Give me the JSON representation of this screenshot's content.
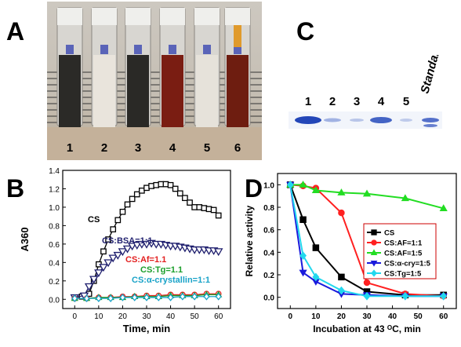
{
  "panels": {
    "a": "A",
    "b": "B",
    "c": "C",
    "d": "D"
  },
  "photo": {
    "tube_labels": [
      "1",
      "2",
      "3",
      "4",
      "5",
      "6"
    ]
  },
  "gel": {
    "lane_labels": [
      "1",
      "2",
      "3",
      "4",
      "5"
    ],
    "standards_label": "Standards"
  },
  "colors": {
    "cs_black": "#000000",
    "bsa_navy": "#1f1f6e",
    "af_red": "#e32020",
    "tg_green": "#1a9e2a",
    "acry_cyan": "#1aa3c8",
    "dCS": "#000000",
    "dAF11": "#ff2020",
    "dAF15": "#22dd22",
    "dAcry": "#1a1adc",
    "dTg": "#22d8ee"
  },
  "chart_data": [
    {
      "type": "line",
      "xlabel": "Time, min",
      "ylabel": "A360",
      "xlim": [
        -5,
        65
      ],
      "ylim": [
        -0.1,
        1.4
      ],
      "xticks": [
        0,
        10,
        20,
        30,
        40,
        50,
        60
      ],
      "yticks": [
        "0.0",
        "0.2",
        "0.4",
        "0.6",
        "0.8",
        "1.0",
        "1.2",
        "1.4"
      ],
      "series": [
        {
          "name": "CS",
          "label": "CS",
          "color": "#000000",
          "marker": "square",
          "x": [
            0,
            3,
            6,
            8,
            10,
            12,
            14,
            16,
            18,
            20,
            22,
            24,
            26,
            28,
            30,
            32,
            34,
            36,
            38,
            40,
            42,
            44,
            46,
            48,
            50,
            52,
            54,
            56,
            58,
            60
          ],
          "y": [
            0.02,
            0.03,
            0.06,
            0.2,
            0.38,
            0.52,
            0.65,
            0.76,
            0.86,
            0.95,
            1.03,
            1.09,
            1.14,
            1.18,
            1.21,
            1.23,
            1.24,
            1.25,
            1.25,
            1.24,
            1.2,
            1.15,
            1.1,
            1.05,
            1.0,
            1.0,
            0.99,
            0.98,
            0.97,
            0.91
          ]
        },
        {
          "name": "CS:BSA=1:1",
          "label": "CS:BSA=1:1",
          "color": "#1f1f6e",
          "marker": "triangle-down",
          "x": [
            0,
            4,
            6,
            8,
            10,
            12,
            14,
            16,
            18,
            20,
            22,
            24,
            26,
            28,
            30,
            32,
            34,
            36,
            38,
            40,
            42,
            44,
            46,
            48,
            50,
            52,
            54,
            56,
            58,
            60
          ],
          "y": [
            0.02,
            0.04,
            0.14,
            0.22,
            0.29,
            0.35,
            0.4,
            0.45,
            0.48,
            0.52,
            0.55,
            0.58,
            0.59,
            0.6,
            0.6,
            0.61,
            0.6,
            0.6,
            0.59,
            0.58,
            0.58,
            0.57,
            0.56,
            0.55,
            0.54,
            0.54,
            0.54,
            0.53,
            0.53,
            0.52
          ]
        },
        {
          "name": "CS:Af=1.1",
          "label": "CS:Af=1.1",
          "color": "#e32020",
          "marker": "circle",
          "x": [
            0,
            5,
            10,
            15,
            20,
            25,
            30,
            35,
            40,
            45,
            50,
            55,
            60
          ],
          "y": [
            0.01,
            0.01,
            0.02,
            0.02,
            0.03,
            0.03,
            0.04,
            0.04,
            0.05,
            0.05,
            0.05,
            0.06,
            0.06
          ]
        },
        {
          "name": "CS:Tg=1.1",
          "label": "CS:Tg=1.1",
          "color": "#1a9e2a",
          "marker": "triangle-up",
          "x": [
            0,
            5,
            10,
            15,
            20,
            25,
            30,
            35,
            40,
            45,
            50,
            55,
            60
          ],
          "y": [
            0.01,
            0.01,
            0.02,
            0.02,
            0.02,
            0.03,
            0.03,
            0.03,
            0.04,
            0.04,
            0.04,
            0.05,
            0.05
          ]
        },
        {
          "name": "CS:α-crystallin=1:1",
          "label": "CS:α-crystallin=1:1",
          "color": "#1aa3c8",
          "marker": "diamond",
          "x": [
            0,
            5,
            10,
            15,
            20,
            25,
            30,
            35,
            40,
            45,
            50,
            55,
            60
          ],
          "y": [
            0.01,
            0.01,
            0.01,
            0.01,
            0.02,
            0.02,
            0.02,
            0.02,
            0.02,
            0.03,
            0.03,
            0.03,
            0.03
          ]
        }
      ]
    },
    {
      "type": "line",
      "xlabel": "Incubation at 43 ᴼC, min",
      "ylabel": "Relative activity",
      "xlim": [
        -5,
        65
      ],
      "ylim": [
        -0.1,
        1.1
      ],
      "xticks": [
        0,
        10,
        20,
        30,
        40,
        50,
        60
      ],
      "yticks": [
        "0.0",
        "0.2",
        "0.4",
        "0.6",
        "0.8",
        "1.0"
      ],
      "legend_position": "center-right",
      "series": [
        {
          "name": "CS",
          "color": "#000000",
          "marker": "square",
          "x": [
            0,
            5,
            10,
            20,
            30,
            45,
            60
          ],
          "y": [
            1.0,
            0.69,
            0.44,
            0.18,
            0.05,
            0.02,
            0.02
          ]
        },
        {
          "name": "CS:AF=1:1",
          "color": "#ff2020",
          "marker": "circle",
          "x": [
            0,
            5,
            10,
            20,
            30,
            45,
            60
          ],
          "y": [
            1.0,
            0.99,
            0.97,
            0.75,
            0.13,
            0.03,
            0.01
          ]
        },
        {
          "name": "CS:AF=1:5",
          "color": "#22dd22",
          "marker": "triangle-up",
          "x": [
            0,
            5,
            10,
            20,
            30,
            45,
            60
          ],
          "y": [
            1.0,
            1.0,
            0.95,
            0.93,
            0.92,
            0.88,
            0.79
          ]
        },
        {
          "name": "CS:α-cry=1:5",
          "color": "#1a1adc",
          "marker": "triangle-down",
          "x": [
            0,
            5,
            10,
            20,
            30,
            45,
            60
          ],
          "y": [
            1.0,
            0.22,
            0.14,
            0.03,
            0.02,
            0.01,
            0.01
          ]
        },
        {
          "name": "CS:Tg=1:5",
          "color": "#22d8ee",
          "marker": "diamond",
          "x": [
            0,
            5,
            10,
            20,
            30,
            45,
            60
          ],
          "y": [
            1.0,
            0.37,
            0.18,
            0.06,
            0.01,
            0.01,
            0.01
          ]
        }
      ]
    }
  ]
}
